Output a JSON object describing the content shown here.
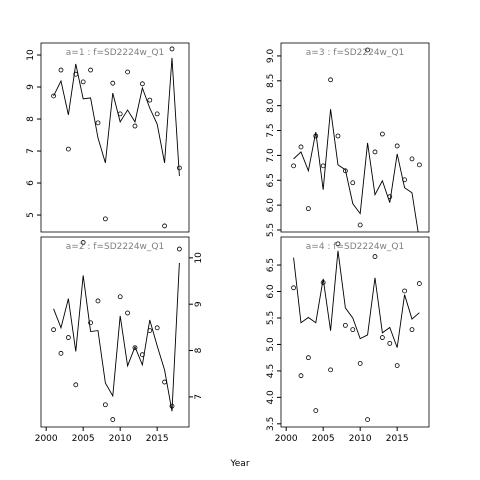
{
  "xlabel": "Year",
  "chart_data": [
    {
      "type": "scatter-line",
      "title": "a=1  :  f=SD2224w_Q1",
      "x": [
        2001,
        2002,
        2003,
        2004,
        2005,
        2006,
        2007,
        2008,
        2009,
        2010,
        2011,
        2012,
        2013,
        2014,
        2015,
        2016,
        2017,
        2018
      ],
      "series": [
        {
          "color": "#000000",
          "marker": "circle",
          "values": [
            8.72,
            9.53,
            7.06,
            9.4,
            9.16,
            9.53,
            7.88,
            4.88,
            9.12,
            8.16,
            9.47,
            7.78,
            9.1,
            8.59,
            8.16,
            4.66,
            10.19,
            6.47
          ]
        },
        {
          "color": "#000000",
          "marker": "none",
          "values": [
            8.72,
            9.19,
            8.13,
            9.72,
            8.63,
            8.66,
            7.41,
            6.63,
            8.81,
            7.91,
            8.28,
            7.91,
            8.97,
            8.34,
            7.84,
            6.63,
            9.91,
            6.22
          ]
        }
      ],
      "xlim": [
        1999.3,
        2019.3
      ],
      "xticks": [
        2000,
        2005,
        2010,
        2015
      ],
      "show_xaxis": false,
      "ylim": [
        4.47,
        10.375
      ],
      "yticks": [
        5,
        6,
        7,
        8,
        9,
        10
      ],
      "ytick_side": "left"
    },
    {
      "type": "scatter-line",
      "title": "a=3  :  f=SD2224w_Q1",
      "x": [
        2001,
        2002,
        2003,
        2004,
        2005,
        2006,
        2007,
        2008,
        2009,
        2010,
        2011,
        2012,
        2013,
        2014,
        2015,
        2016,
        2017,
        2018
      ],
      "series": [
        {
          "color": "#000000",
          "marker": "circle",
          "values": [
            6.79,
            7.17,
            5.93,
            7.39,
            6.79,
            8.52,
            7.39,
            6.69,
            6.45,
            5.6,
            9.12,
            7.07,
            7.43,
            6.17,
            7.19,
            6.51,
            6.93,
            6.81
          ]
        },
        {
          "color": "#000000",
          "marker": "none",
          "values": [
            6.93,
            7.07,
            6.69,
            7.47,
            6.31,
            7.93,
            6.81,
            6.71,
            6.03,
            5.83,
            7.25,
            6.21,
            6.49,
            6.05,
            7.03,
            6.35,
            6.25,
            5.3
          ]
        }
      ],
      "xlim": [
        1999.3,
        2019.3
      ],
      "xticks": [
        2000,
        2005,
        2010,
        2015
      ],
      "show_xaxis": false,
      "ylim": [
        5.46,
        9.26
      ],
      "yticks": [
        {
          "value": 5.5,
          "label": "5.5"
        },
        {
          "value": 6,
          "label": "6.0"
        },
        {
          "value": 6.5,
          "label": "6.5"
        },
        {
          "value": 7,
          "label": "7.0"
        },
        {
          "value": 7.5,
          "label": "7.5"
        },
        {
          "value": 8,
          "label": "8.0"
        },
        {
          "value": 8.5,
          "label": "8.5"
        },
        {
          "value": 9,
          "label": "9.0"
        }
      ],
      "ytick_side": "left"
    },
    {
      "type": "scatter-line",
      "title": "a=2  :  f=SD2224w_Q1",
      "x": [
        2001,
        2002,
        2003,
        2004,
        2005,
        2006,
        2007,
        2008,
        2009,
        2010,
        2011,
        2012,
        2013,
        2014,
        2015,
        2016,
        2017,
        2018
      ],
      "series": [
        {
          "color": "#000000",
          "marker": "circle",
          "values": [
            8.45,
            7.94,
            8.28,
            7.26,
            10.33,
            8.6,
            9.07,
            6.83,
            6.51,
            9.16,
            8.81,
            8.06,
            7.91,
            8.43,
            8.49,
            7.32,
            6.8,
            10.19
          ]
        },
        {
          "color": "#000000",
          "marker": "none",
          "values": [
            8.9,
            8.49,
            9.12,
            7.98,
            9.62,
            8.41,
            8.43,
            7.3,
            7.02,
            8.75,
            7.67,
            8.08,
            7.69,
            8.66,
            8.1,
            7.58,
            6.69,
            9.89
          ]
        }
      ],
      "xlim": [
        1999.3,
        2019.3
      ],
      "xticks": [
        2000,
        2005,
        2010,
        2015
      ],
      "show_xaxis": true,
      "ylim": [
        6.35,
        10.45
      ],
      "yticks": [
        7,
        8,
        9,
        10
      ],
      "ytick_side": "right"
    },
    {
      "type": "scatter-line",
      "title": "a=4  :  f=SD2224w_Q1",
      "x": [
        2001,
        2002,
        2003,
        2004,
        2005,
        2006,
        2007,
        2008,
        2009,
        2010,
        2011,
        2012,
        2013,
        2014,
        2015,
        2016,
        2017,
        2018
      ],
      "series": [
        {
          "color": "#000000",
          "marker": "circle",
          "values": [
            6.07,
            4.41,
            4.75,
            3.75,
            6.17,
            4.52,
            6.9,
            5.36,
            5.28,
            4.64,
            3.58,
            6.66,
            5.13,
            5.02,
            4.6,
            6.01,
            5.28,
            6.15
          ]
        },
        {
          "color": "#000000",
          "marker": "none",
          "values": [
            6.64,
            5.41,
            5.51,
            5.41,
            6.24,
            5.26,
            6.77,
            5.69,
            5.5,
            5.11,
            5.18,
            6.26,
            5.22,
            5.32,
            4.94,
            5.94,
            5.48,
            5.6
          ]
        }
      ],
      "xlim": [
        1999.3,
        2019.3
      ],
      "xticks": [
        2000,
        2005,
        2010,
        2015
      ],
      "show_xaxis": true,
      "ylim": [
        3.44,
        7.03
      ],
      "yticks": [
        {
          "value": 3.5,
          "label": "3.5"
        },
        {
          "value": 4,
          "label": "4.0"
        },
        {
          "value": 4.5,
          "label": "4.5"
        },
        {
          "value": 5,
          "label": "5.0"
        },
        {
          "value": 5.5,
          "label": "5.5"
        },
        {
          "value": 6,
          "label": "6.0"
        },
        {
          "value": 6.5,
          "label": "6.5"
        }
      ],
      "ytick_side": "left"
    }
  ]
}
